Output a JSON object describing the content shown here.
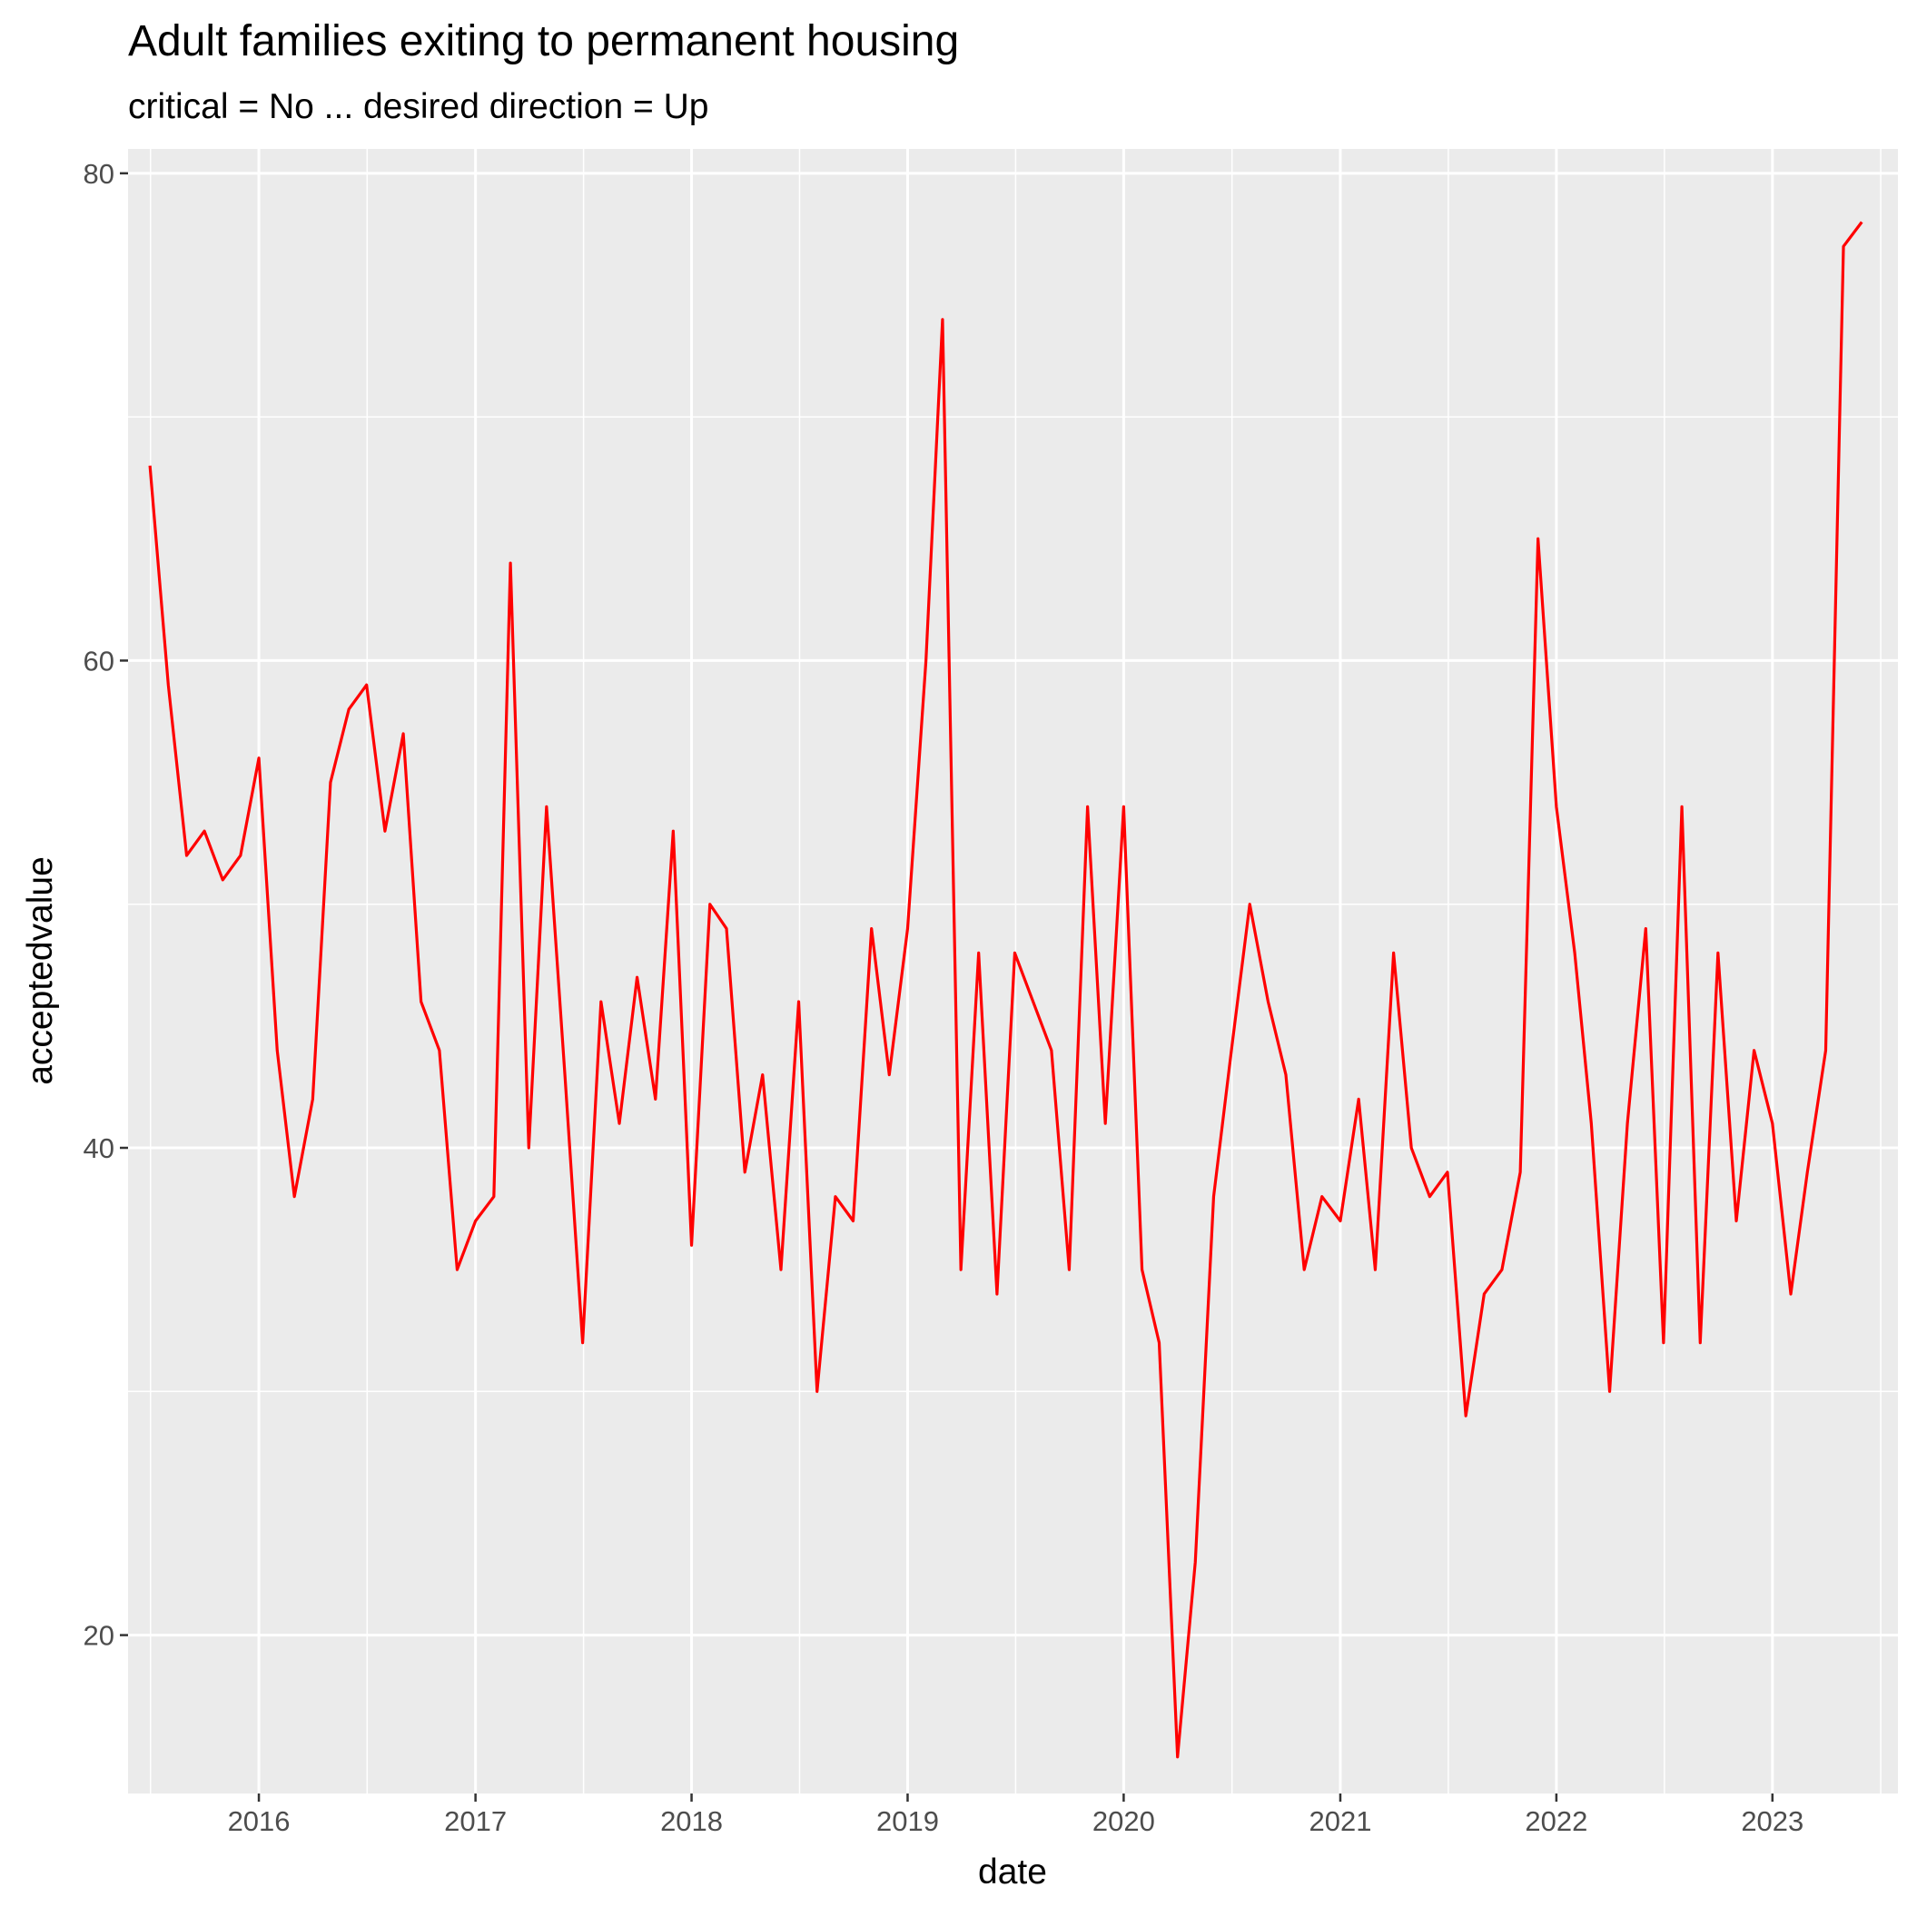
{
  "chart_data": {
    "type": "line",
    "title": "Adult families exiting to permanent housing",
    "subtitle": "critical = No ... desired direction = Up",
    "xlabel": "date",
    "ylabel": "acceptedvalue",
    "xlim": [
      "2015-05-25",
      "2023-08-01"
    ],
    "ylim": [
      13.5,
      81
    ],
    "x_ticks": [
      {
        "date": "2016-01-01",
        "label": "2016"
      },
      {
        "date": "2017-01-01",
        "label": "2017"
      },
      {
        "date": "2018-01-01",
        "label": "2018"
      },
      {
        "date": "2019-01-01",
        "label": "2019"
      },
      {
        "date": "2020-01-01",
        "label": "2020"
      },
      {
        "date": "2021-01-01",
        "label": "2021"
      },
      {
        "date": "2022-01-01",
        "label": "2022"
      },
      {
        "date": "2023-01-01",
        "label": "2023"
      }
    ],
    "y_ticks": [
      20,
      40,
      60,
      80
    ],
    "y_minor": [
      30,
      50,
      70
    ],
    "grid": true,
    "legend": "none",
    "line_color": "#ff0000",
    "panel_color": "#ebebeb",
    "series": [
      {
        "x": [
          "2015-07-01",
          "2015-08-01",
          "2015-09-01",
          "2015-10-01",
          "2015-11-01",
          "2015-12-01",
          "2016-01-01",
          "2016-02-01",
          "2016-03-01",
          "2016-04-01",
          "2016-05-01",
          "2016-06-01",
          "2016-07-01",
          "2016-08-01",
          "2016-09-01",
          "2016-10-01",
          "2016-11-01",
          "2016-12-01",
          "2017-01-01",
          "2017-02-01",
          "2017-03-01",
          "2017-04-01",
          "2017-05-01",
          "2017-06-01",
          "2017-07-01",
          "2017-08-01",
          "2017-09-01",
          "2017-10-01",
          "2017-11-01",
          "2017-12-01",
          "2018-01-01",
          "2018-02-01",
          "2018-03-01",
          "2018-04-01",
          "2018-05-01",
          "2018-06-01",
          "2018-07-01",
          "2018-08-01",
          "2018-09-01",
          "2018-10-01",
          "2018-11-01",
          "2018-12-01",
          "2019-01-01",
          "2019-02-01",
          "2019-03-01",
          "2019-04-01",
          "2019-05-01",
          "2019-06-01",
          "2019-07-01",
          "2019-08-01",
          "2019-09-01",
          "2019-10-01",
          "2019-11-01",
          "2019-12-01",
          "2020-01-01",
          "2020-02-01",
          "2020-03-01",
          "2020-04-01",
          "2020-05-01",
          "2020-06-01",
          "2020-07-01",
          "2020-08-01",
          "2020-09-01",
          "2020-10-01",
          "2020-11-01",
          "2020-12-01",
          "2021-01-01",
          "2021-02-01",
          "2021-03-01",
          "2021-04-01",
          "2021-05-01",
          "2021-06-01",
          "2021-07-01",
          "2021-08-01",
          "2021-09-01",
          "2021-10-01",
          "2021-11-01",
          "2021-12-01",
          "2022-01-01",
          "2022-02-01",
          "2022-03-01",
          "2022-04-01",
          "2022-05-01",
          "2022-06-01",
          "2022-07-01",
          "2022-08-01",
          "2022-09-01",
          "2022-10-01",
          "2022-11-01",
          "2022-12-01",
          "2023-01-01",
          "2023-02-01",
          "2023-03-01",
          "2023-04-01",
          "2023-05-01",
          "2023-06-01"
        ],
        "y": [
          68,
          59,
          52,
          53,
          51,
          52,
          56,
          44,
          38,
          42,
          55,
          58,
          59,
          53,
          57,
          46,
          44,
          35,
          37,
          38,
          64,
          40,
          54,
          43,
          32,
          46,
          41,
          47,
          42,
          53,
          36,
          50,
          49,
          39,
          43,
          35,
          46,
          30,
          38,
          37,
          49,
          43,
          49,
          60,
          74,
          35,
          48,
          34,
          48,
          46,
          44,
          35,
          54,
          41,
          54,
          35,
          32,
          15,
          23,
          38,
          44,
          50,
          46,
          43,
          35,
          38,
          37,
          42,
          35,
          48,
          40,
          38,
          39,
          29,
          34,
          35,
          39,
          65,
          54,
          48,
          41,
          30,
          41,
          49,
          32,
          54,
          32,
          48,
          37,
          44,
          41,
          34,
          39,
          44,
          77,
          78
        ]
      }
    ]
  }
}
